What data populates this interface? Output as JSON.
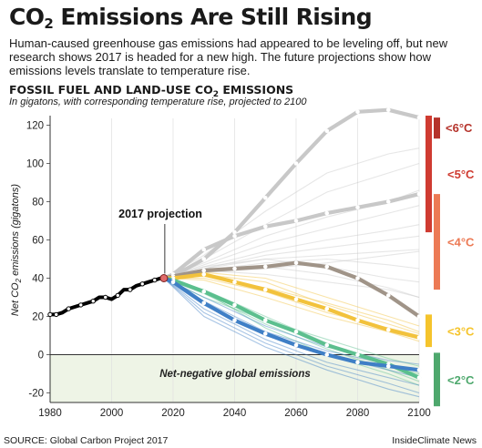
{
  "header": {
    "title_main": "CO",
    "title_sub": "2",
    "title_rest": " Emissions Are Still Rising",
    "subtitle": "Human-caused greenhouse gas emissions had appeared to be leveling off, but new research shows 2017 is headed for a new high. The future projections show how emissions levels translate to temperature rise."
  },
  "chart_title_main": "FOSSIL FUEL AND LAND-USE CO",
  "chart_title_sub": "2",
  "chart_title_rest": " EMISSIONS",
  "chart_subtitle": "In gigatons, with corresponding temperature rise, projected to 2100",
  "footer": {
    "source": "SOURCE: Global Carbon Project 2017",
    "credit": "InsideClimate News"
  },
  "colors": {
    "historical": "#000000",
    "grey_scenarios": "#c8c8c8",
    "brown_scenario": "#a09488",
    "yellow_scenarios": "#f2c23c",
    "green_scenarios": "#5bbf8e",
    "blue_scenarios": "#3f7fc6",
    "negative_zone": "#eef4e6",
    "projection_point": "#e06a6a",
    "band_6c": "#b5332b",
    "band_5c": "#cf3b31",
    "band_4c": "#ec7a55",
    "band_3c": "#f5c42c",
    "band_2c": "#4ea86d"
  },
  "chart_data": {
    "type": "line",
    "title": "FOSSIL FUEL AND LAND-USE CO2 EMISSIONS",
    "subtitle": "In gigatons, with corresponding temperature rise, projected to 2100",
    "ylabel_main": "Net CO",
    "ylabel_sub": "2",
    "ylabel_rest": " emissions (gigatons)",
    "xlim": [
      1980,
      2100
    ],
    "ylim": [
      -25,
      125
    ],
    "x_ticks": [
      1980,
      2000,
      2020,
      2040,
      2060,
      2080,
      2100
    ],
    "y_ticks": [
      -20,
      0,
      20,
      40,
      60,
      80,
      100,
      120
    ],
    "grid": "vertical only",
    "annotations": {
      "projection_label": "2017 projection",
      "projection_point": {
        "x": 2017,
        "y": 40
      },
      "negative_zone_label": "Net-negative global emissions"
    },
    "temperature_bands": [
      {
        "label": "<6°C",
        "from": 113,
        "to": 124
      },
      {
        "label": "<5°C",
        "from": 64,
        "to": 125
      },
      {
        "label": "<4°C",
        "from": 34,
        "to": 84
      },
      {
        "label": "<3°C",
        "from": 4,
        "to": 21
      },
      {
        "label": "<2°C",
        "from": -27,
        "to": 1
      }
    ],
    "historical": {
      "x": [
        1980,
        1982,
        1984,
        1986,
        1988,
        1990,
        1992,
        1994,
        1996,
        1998,
        2000,
        2002,
        2004,
        2006,
        2008,
        2010,
        2012,
        2014,
        2016,
        2017
      ],
      "y": [
        21,
        21,
        22,
        24,
        25,
        26,
        27,
        28,
        30,
        30,
        29,
        31,
        34,
        34,
        36,
        37,
        38,
        39,
        40,
        40
      ]
    },
    "highlighted_series": [
      {
        "group": "grey",
        "x": [
          2017,
          2020,
          2030,
          2040,
          2050,
          2060,
          2070,
          2080,
          2090,
          2100
        ],
        "y": [
          40,
          41,
          50,
          64,
          82,
          100,
          117,
          127,
          128,
          124
        ]
      },
      {
        "group": "grey",
        "x": [
          2017,
          2020,
          2030,
          2040,
          2050,
          2060,
          2070,
          2080,
          2090,
          2100
        ],
        "y": [
          40,
          42,
          55,
          62,
          67,
          70,
          74,
          77,
          80,
          84
        ]
      },
      {
        "group": "brown",
        "x": [
          2017,
          2020,
          2030,
          2040,
          2050,
          2060,
          2070,
          2080,
          2090,
          2100
        ],
        "y": [
          40,
          41,
          44,
          45,
          46,
          48,
          46,
          40,
          31,
          20
        ]
      },
      {
        "group": "yellow",
        "x": [
          2017,
          2020,
          2030,
          2040,
          2050,
          2060,
          2070,
          2080,
          2090,
          2100
        ],
        "y": [
          40,
          40,
          42,
          38,
          34,
          29,
          24,
          18,
          13,
          9
        ]
      },
      {
        "group": "green",
        "x": [
          2017,
          2020,
          2030,
          2040,
          2050,
          2060,
          2070,
          2080,
          2090,
          2100
        ],
        "y": [
          40,
          39,
          33,
          26,
          18,
          12,
          5,
          0,
          -5,
          -12
        ]
      },
      {
        "group": "blue",
        "x": [
          2017,
          2020,
          2030,
          2040,
          2050,
          2060,
          2070,
          2080,
          2090,
          2100
        ],
        "y": [
          40,
          38,
          27,
          18,
          11,
          5,
          0,
          -4,
          -6,
          -8
        ]
      }
    ],
    "background_series": [
      {
        "group": "grey",
        "x": [
          2017,
          2030,
          2050,
          2070,
          2090,
          2100
        ],
        "y": [
          40,
          52,
          75,
          95,
          105,
          108
        ]
      },
      {
        "group": "grey",
        "x": [
          2017,
          2030,
          2050,
          2070,
          2090,
          2100
        ],
        "y": [
          40,
          50,
          68,
          85,
          95,
          100
        ]
      },
      {
        "group": "grey",
        "x": [
          2017,
          2030,
          2050,
          2070,
          2090,
          2100
        ],
        "y": [
          40,
          48,
          62,
          72,
          80,
          86
        ]
      },
      {
        "group": "grey",
        "x": [
          2017,
          2030,
          2050,
          2070,
          2090,
          2100
        ],
        "y": [
          40,
          47,
          58,
          66,
          74,
          78
        ]
      },
      {
        "group": "grey",
        "x": [
          2017,
          2030,
          2050,
          2070,
          2090,
          2100
        ],
        "y": [
          40,
          46,
          54,
          60,
          65,
          68
        ]
      },
      {
        "group": "grey",
        "x": [
          2017,
          2030,
          2050,
          2070,
          2090,
          2100
        ],
        "y": [
          40,
          45,
          52,
          56,
          60,
          62
        ]
      },
      {
        "group": "grey",
        "x": [
          2017,
          2030,
          2050,
          2070,
          2090,
          2100
        ],
        "y": [
          40,
          46,
          50,
          52,
          54,
          55
        ]
      },
      {
        "group": "grey",
        "x": [
          2017,
          2030,
          2050,
          2070,
          2090,
          2100
        ],
        "y": [
          40,
          44,
          48,
          50,
          47,
          45
        ]
      },
      {
        "group": "grey",
        "x": [
          2017,
          2030,
          2050,
          2070,
          2090,
          2100
        ],
        "y": [
          40,
          45,
          50,
          46,
          40,
          38
        ]
      },
      {
        "group": "grey",
        "x": [
          2017,
          2030,
          2050,
          2070,
          2090,
          2100
        ],
        "y": [
          40,
          44,
          46,
          42,
          35,
          30
        ]
      },
      {
        "group": "grey",
        "x": [
          2017,
          2030,
          2050,
          2070,
          2090,
          2100
        ],
        "y": [
          40,
          43,
          45,
          48,
          52,
          54
        ]
      },
      {
        "group": "grey",
        "x": [
          2017,
          2030,
          2050,
          2070,
          2090,
          2100
        ],
        "y": [
          40,
          44,
          42,
          38,
          34,
          30
        ]
      },
      {
        "group": "yellow",
        "x": [
          2017,
          2030,
          2050,
          2070,
          2090,
          2100
        ],
        "y": [
          40,
          43,
          40,
          30,
          20,
          15
        ]
      },
      {
        "group": "yellow",
        "x": [
          2017,
          2030,
          2050,
          2070,
          2090,
          2100
        ],
        "y": [
          40,
          41,
          35,
          27,
          18,
          12
        ]
      },
      {
        "group": "yellow",
        "x": [
          2017,
          2030,
          2050,
          2070,
          2090,
          2100
        ],
        "y": [
          40,
          40,
          33,
          22,
          14,
          10
        ]
      },
      {
        "group": "yellow",
        "x": [
          2017,
          2030,
          2050,
          2070,
          2090,
          2100
        ],
        "y": [
          40,
          39,
          30,
          20,
          12,
          7
        ]
      },
      {
        "group": "yellow",
        "x": [
          2017,
          2030,
          2050,
          2070,
          2090,
          2100
        ],
        "y": [
          40,
          42,
          38,
          26,
          16,
          11
        ]
      },
      {
        "group": "green",
        "x": [
          2017,
          2030,
          2050,
          2070,
          2090,
          2100
        ],
        "y": [
          40,
          34,
          20,
          6,
          -6,
          -10
        ]
      },
      {
        "group": "green",
        "x": [
          2017,
          2030,
          2050,
          2070,
          2090,
          2100
        ],
        "y": [
          40,
          32,
          16,
          3,
          -8,
          -14
        ]
      },
      {
        "group": "green",
        "x": [
          2017,
          2030,
          2050,
          2070,
          2090,
          2100
        ],
        "y": [
          40,
          30,
          18,
          8,
          -2,
          -6
        ]
      },
      {
        "group": "green",
        "x": [
          2017,
          2030,
          2050,
          2070,
          2090,
          2100
        ],
        "y": [
          40,
          33,
          14,
          0,
          -10,
          -16
        ]
      },
      {
        "group": "blue",
        "x": [
          2017,
          2030,
          2050,
          2070,
          2090,
          2100
        ],
        "y": [
          40,
          26,
          10,
          0,
          -8,
          -12
        ]
      },
      {
        "group": "blue",
        "x": [
          2017,
          2030,
          2050,
          2070,
          2090,
          2100
        ],
        "y": [
          40,
          24,
          8,
          -4,
          -12,
          -16
        ]
      },
      {
        "group": "blue",
        "x": [
          2017,
          2030,
          2050,
          2070,
          2090,
          2100
        ],
        "y": [
          40,
          22,
          6,
          -6,
          -15,
          -20
        ]
      },
      {
        "group": "blue",
        "x": [
          2017,
          2030,
          2050,
          2070,
          2090,
          2100
        ],
        "y": [
          40,
          28,
          12,
          2,
          -5,
          -9
        ]
      },
      {
        "group": "blue",
        "x": [
          2017,
          2030,
          2050,
          2070,
          2090,
          2100
        ],
        "y": [
          40,
          20,
          4,
          -8,
          -18,
          -22
        ]
      },
      {
        "group": "blue",
        "x": [
          2017,
          2030,
          2050,
          2070,
          2090,
          2100
        ],
        "y": [
          40,
          30,
          15,
          4,
          -3,
          -5
        ]
      }
    ]
  }
}
